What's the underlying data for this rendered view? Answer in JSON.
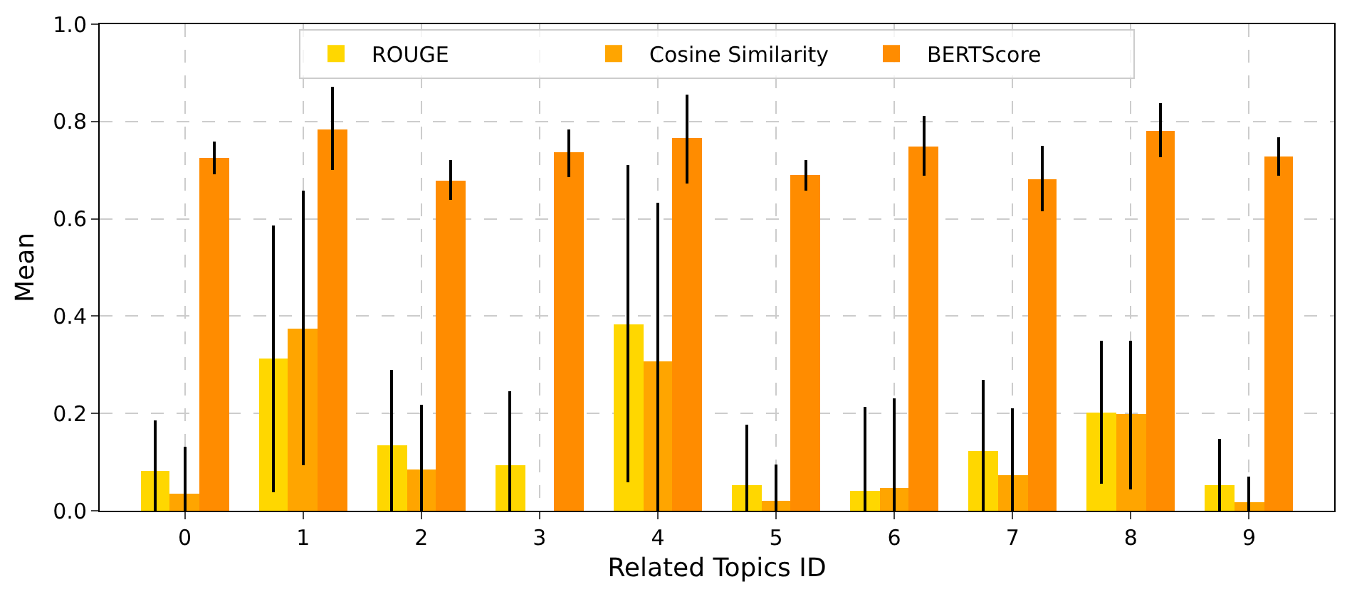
{
  "chart_data": {
    "type": "bar",
    "xlabel": "Related Topics ID",
    "ylabel": "Mean",
    "categories": [
      "0",
      "1",
      "2",
      "3",
      "4",
      "5",
      "6",
      "7",
      "8",
      "9"
    ],
    "series": [
      {
        "name": "ROUGE",
        "color": "#ffd700",
        "values": [
          0.083,
          0.312,
          0.135,
          0.095,
          0.384,
          0.052,
          0.04,
          0.123,
          0.203,
          0.052
        ],
        "errors": [
          [
            0,
            0.186
          ],
          [
            0.038,
            0.587
          ],
          [
            0,
            0.289
          ],
          [
            0,
            0.245
          ],
          [
            0.058,
            0.711
          ],
          [
            0,
            0.177
          ],
          [
            0,
            0.214
          ],
          [
            0,
            0.269
          ],
          [
            0.055,
            0.349
          ],
          [
            0,
            0.147
          ]
        ]
      },
      {
        "name": "Cosine Similarity",
        "color": "#ffa500",
        "values": [
          0.034,
          0.375,
          0.086,
          0,
          0.306,
          0.02,
          0.046,
          0.074,
          0.199,
          0.017
        ],
        "errors": [
          [
            0,
            0.132
          ],
          [
            0.094,
            0.658
          ],
          [
            0,
            0.218
          ],
          null,
          [
            0,
            0.633
          ],
          [
            0,
            0.095
          ],
          [
            0,
            0.231
          ],
          [
            0,
            0.211
          ],
          [
            0.044,
            0.349
          ],
          [
            0,
            0.07
          ]
        ]
      },
      {
        "name": "BERTScore",
        "color": "#ff8c00",
        "values": [
          0.725,
          0.785,
          0.679,
          0.736,
          0.765,
          0.69,
          0.75,
          0.681,
          0.782,
          0.727
        ],
        "errors": [
          [
            0.691,
            0.759
          ],
          [
            0.701,
            0.872
          ],
          [
            0.639,
            0.721
          ],
          [
            0.686,
            0.784
          ],
          [
            0.673,
            0.856
          ],
          [
            0.658,
            0.721
          ],
          [
            0.688,
            0.811
          ],
          [
            0.615,
            0.75
          ],
          [
            0.726,
            0.838
          ],
          [
            0.688,
            0.768
          ]
        ]
      }
    ],
    "ylim": [
      0,
      1.0
    ],
    "yticks": [
      {
        "value": 0,
        "label": "0.0"
      },
      {
        "value": 0.2,
        "label": "0.2"
      },
      {
        "value": 0.4,
        "label": "0.4"
      },
      {
        "value": 0.6,
        "label": "0.6"
      },
      {
        "value": 0.8,
        "label": "0.8"
      },
      {
        "value": 1.0,
        "label": "1.0"
      }
    ],
    "grid": true,
    "legend": "top"
  }
}
